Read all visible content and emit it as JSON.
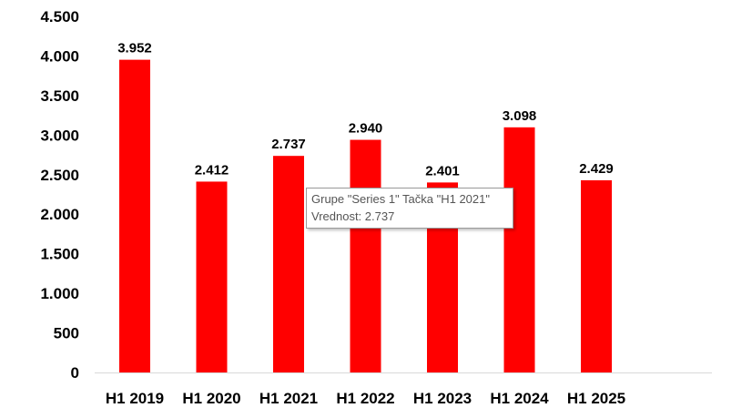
{
  "chart_data": {
    "type": "bar",
    "categories": [
      "H1 2019",
      "H1 2020",
      "H1 2021",
      "H1 2022",
      "H1 2023",
      "H1 2024",
      "H1 2025"
    ],
    "values": [
      3952,
      2412,
      2737,
      2940,
      2401,
      3098,
      2429
    ],
    "data_labels": [
      "3.952",
      "2.412",
      "2.737",
      "2.940",
      "2.401",
      "3.098",
      "2.429"
    ],
    "y_ticks": [
      0,
      500,
      1000,
      1500,
      2000,
      2500,
      3000,
      3500,
      4000,
      4500
    ],
    "y_tick_labels": [
      "0",
      "500",
      "1.000",
      "1.500",
      "2.000",
      "2.500",
      "3.000",
      "3.500",
      "4.000",
      "4.500"
    ],
    "ylim": [
      0,
      4500
    ],
    "series_name": "Series 1",
    "bar_color": "#ff0000",
    "title": "",
    "xlabel": "",
    "ylabel": ""
  },
  "tooltip": {
    "line1": "Grupe \"Series 1\" Tačka \"H1 2021\"",
    "line2": "Vrednost: 2.737"
  }
}
